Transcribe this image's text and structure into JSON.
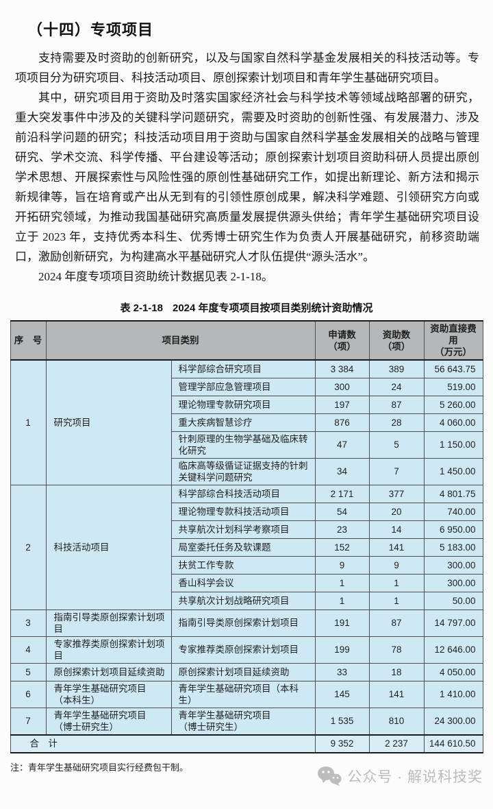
{
  "page": {
    "section_title": "（十四）专项项目",
    "paragraphs": [
      "支持需要及时资助的创新研究，以及与国家自然科学基金发展相关的科技活动等。专项项目分为研究项目、科技活动项目、原创探索计划项目和青年学生基础研究项目。",
      "其中，研究项目用于资助及时落实国家经济社会与科学技术等领域战略部署的研究，重大突发事件中涉及的关键科学问题研究，需要及时资助的创新性强、有发展潜力、涉及前沿科学问题的研究；科技活动项目用于资助与国家自然科学基金发展相关的战略与管理研究、学术交流、科学传播、平台建设等活动；原创探索计划项目资助科研人员提出原创学术思想、开展探索性与风险性强的原创性基础研究工作，如提出新理论、新方法和揭示新规律等，旨在培育或产出从无到有的引领性原创成果，解决科学难题、引领研究方向或开拓研究领域，为推动我国基础研究高质量发展提供源头供给；青年学生基础研究项目设立于 2023 年，支持优秀本科生、优秀博士研究生作为负责人开展基础研究，前移资助端口，激励创新研究，为构建高水平基础研究人才队伍提供“源头活水”。",
      "2024 年度专项项目资助统计数据见表 2-1-18。"
    ]
  },
  "table": {
    "caption_label": "表 2-1-18",
    "caption_text": "2024 年度专项项目按项目类别统计资助情况",
    "headers": {
      "no": "序　号",
      "category": "项目类别",
      "applications": "申请数\n（项）",
      "grants": "资助数\n（项）",
      "funding": "资助直接费用\n（万元）"
    },
    "groups": [
      {
        "no": "1",
        "category": "研究项目",
        "items": [
          {
            "name": "科学部综合研究项目",
            "applications": "3 384",
            "grants": "389",
            "funding": "56 643.75"
          },
          {
            "name": "管理学部应急管理项目",
            "applications": "300",
            "grants": "24",
            "funding": "519.00"
          },
          {
            "name": "理论物理专款研究项目",
            "applications": "197",
            "grants": "87",
            "funding": "5 260.00"
          },
          {
            "name": "重大疾病智慧诊疗",
            "applications": "876",
            "grants": "28",
            "funding": "4 060.00"
          },
          {
            "name": "针刺原理的生物学基础及临床转化研究",
            "applications": "47",
            "grants": "5",
            "funding": "1 150.00"
          },
          {
            "name": "临床高等级循证证据支持的针刺关键科学问题研究",
            "applications": "34",
            "grants": "7",
            "funding": "1 450.00"
          }
        ]
      },
      {
        "no": "2",
        "category": "科技活动项目",
        "items": [
          {
            "name": "科学部综合科技活动项目",
            "applications": "2 171",
            "grants": "377",
            "funding": "4 801.75"
          },
          {
            "name": "理论物理专款科技活动项目",
            "applications": "54",
            "grants": "20",
            "funding": "740.00"
          },
          {
            "name": "共享航次计划科学考察项目",
            "applications": "23",
            "grants": "14",
            "funding": "6 950.00"
          },
          {
            "name": "局室委托任务及软课题",
            "applications": "152",
            "grants": "141",
            "funding": "5 183.00"
          },
          {
            "name": "扶贫工作专款",
            "applications": "9",
            "grants": "9",
            "funding": "300.00"
          },
          {
            "name": "香山科学会议",
            "applications": "1",
            "grants": "1",
            "funding": "300.00"
          },
          {
            "name": "共享航次计划战略研究项目",
            "applications": "1",
            "grants": "1",
            "funding": "50.00"
          }
        ]
      },
      {
        "no": "3",
        "category": "指南引导类原创探索计划项目",
        "items": [
          {
            "name": "指南引导类原创探索计划项目",
            "applications": "191",
            "grants": "87",
            "funding": "14 797.00"
          }
        ]
      },
      {
        "no": "4",
        "category": "专家推荐类原创探索计划项目",
        "items": [
          {
            "name": "专家推荐类原创探索计划项目",
            "applications": "199",
            "grants": "78",
            "funding": "12 646.00"
          }
        ]
      },
      {
        "no": "5",
        "category": "原创探索计划项目延续资助",
        "items": [
          {
            "name": "原创探索计划项目延续资助",
            "applications": "33",
            "grants": "18",
            "funding": "4 050.00"
          }
        ]
      },
      {
        "no": "6",
        "category": "青年学生基础研究项目\n（本科生）",
        "items": [
          {
            "name": "青年学生基础研究项目（本科生）",
            "applications": "145",
            "grants": "141",
            "funding": "1 410.00"
          }
        ]
      },
      {
        "no": "7",
        "category": "青年学生基础研究项目\n（博士研究生）",
        "items": [
          {
            "name": "青年学生基础研究项目\n（博士研究生）",
            "applications": "1 535",
            "grants": "810",
            "funding": "24 300.00"
          }
        ]
      }
    ],
    "total": {
      "label": "合　计",
      "applications": "9 352",
      "grants": "2 237",
      "funding": "144 610.50"
    }
  },
  "note": "注：青年学生基础研究项目实行经费包干制。",
  "watermark": {
    "icon": "wechat-icon",
    "text": "公众号 · 解说科技奖"
  }
}
